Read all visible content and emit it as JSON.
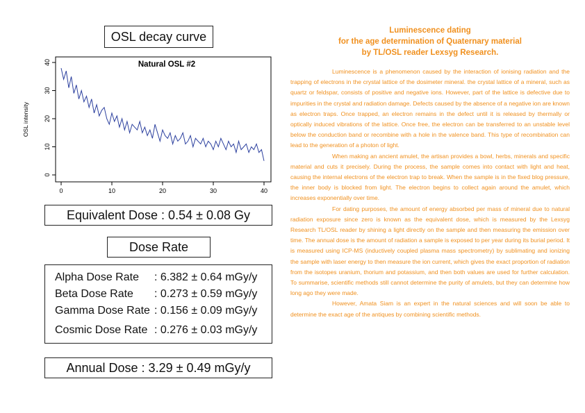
{
  "osl_title": "OSL decay curve",
  "chart_data": {
    "type": "line",
    "title": "Natural OSL #2",
    "xlabel": "",
    "ylabel": "OSL intensity",
    "xlim": [
      0,
      40
    ],
    "ylim": [
      0,
      40
    ],
    "xticks": [
      "0",
      "10",
      "20",
      "30",
      "40"
    ],
    "yticks": [
      "0",
      "10",
      "20",
      "30",
      "40"
    ],
    "grid": false,
    "series": [
      {
        "color": "#2b3f9e",
        "x": [
          0,
          0.5,
          1,
          1.5,
          2,
          2.5,
          3,
          3.5,
          4,
          4.5,
          5,
          5.5,
          6,
          6.5,
          7,
          7.5,
          8,
          8.5,
          9,
          9.5,
          10,
          10.5,
          11,
          11.5,
          12,
          12.5,
          13,
          13.5,
          14,
          14.5,
          15,
          15.5,
          16,
          16.5,
          17,
          17.5,
          18,
          18.5,
          19,
          19.5,
          20,
          20.5,
          21,
          21.5,
          22,
          22.5,
          23,
          23.5,
          24,
          24.5,
          25,
          25.5,
          26,
          26.5,
          27,
          27.5,
          28,
          28.5,
          29,
          29.5,
          30,
          30.5,
          31,
          31.5,
          32,
          32.5,
          33,
          33.5,
          34,
          34.5,
          35,
          35.5,
          36,
          36.5,
          37,
          37.5,
          38,
          38.5,
          39,
          39.5,
          40
        ],
        "y": [
          38,
          34,
          37,
          31,
          35,
          29,
          32,
          27,
          30,
          26,
          28,
          24,
          27,
          22,
          25,
          21,
          23,
          24,
          20,
          18,
          22,
          19,
          21,
          17,
          20,
          16,
          19,
          15,
          18,
          17,
          16,
          19,
          15,
          17,
          14,
          16,
          13,
          18,
          15,
          12,
          16,
          14,
          13,
          15,
          11,
          14,
          12,
          13,
          15,
          11,
          12,
          14,
          10,
          13,
          12,
          11,
          13,
          10,
          12,
          11,
          9,
          12,
          10,
          13,
          11,
          9,
          12,
          10,
          11,
          8,
          12,
          9,
          10,
          11,
          8,
          10,
          9,
          11,
          8,
          9,
          5
        ]
      }
    ]
  },
  "equivalent_dose": "Equivalent Dose : 0.54 ± 0.08 Gy",
  "dose_rate_title": "Dose Rate",
  "dose_rates": [
    {
      "name": "Alpha Dose Rate",
      "value": ": 6.382 ± 0.64 mGy/y"
    },
    {
      "name": "Beta Dose Rate",
      "value": ": 0.273 ± 0.59 mGy/y"
    },
    {
      "name": "Gamma Dose Rate",
      "value": ": 0.156 ± 0.09 mGy/y"
    },
    {
      "name": "Cosmic Dose Rate",
      "value": ": 0.276 ± 0.03 mGy/y"
    }
  ],
  "annual_dose": "Annual Dose : 3.29 ± 0.49 mGy/y",
  "article": {
    "heading": [
      "Luminescence dating",
      "for the age determination of Quaternary material",
      "by TL/OSL reader Lexsyg Research."
    ],
    "paragraphs": [
      "Luminescence is a phenomenon caused by the interaction of ionising radiation and the trapping of electrons in the crystal lattice of the dosimeter mineral. the crystal lattice of a mineral, such as quartz or feldspar, consists of positive and negative ions. However, part of the lattice is defective due to impurities in the crystal and radiation damage. Defects caused by the absence of a negative ion are known as electron traps. Once trapped, an electron remains in the defect until it is released by thermally or optically induced vibrations of the lattice. Once free, the electron can be transferred to an unstable level below the conduction band or recombine with a hole in the valence band. This type of recombination can lead to the generation of a photon of light.",
      "When making an ancient amulet, the artisan provides a bowl, herbs, minerals and specific material and cuts it precisely. During the process, the sample comes into contact with light and heat, causing the internal electrons of the electron trap to break. When the sample is in the fixed blog pressure, the inner body is blocked from light. The electron begins to collect again around the amulet, which increases exponentially over time.",
      "For dating purposes, the amount of energy absorbed per mass of mineral due to natural radiation exposure since zero is known as the equivalent dose, which is measured by the Lexsyg Research TL/OSL reader by shining a light directly on the sample and then measuring the emission over time. The annual dose is the amount of radiation a sample is exposed to per year during its burial period. It is measured using ICP-MS (inductively coupled plasma mass spectrometry) by sublimating and ionizing the sample with laser energy to then measure the ion current, which gives the exact proportion of radiation from the isotopes uranium, thorium and potassium, and then both values are used for further calculation. To summarise, scientific methods still cannot determine the purity of amulets, but they can determine how long ago they were made.",
      "However, Amata Siam is an expert in the natural sciences and will soon be able to determine the exact age of the antiques by combining scientific methods."
    ]
  }
}
